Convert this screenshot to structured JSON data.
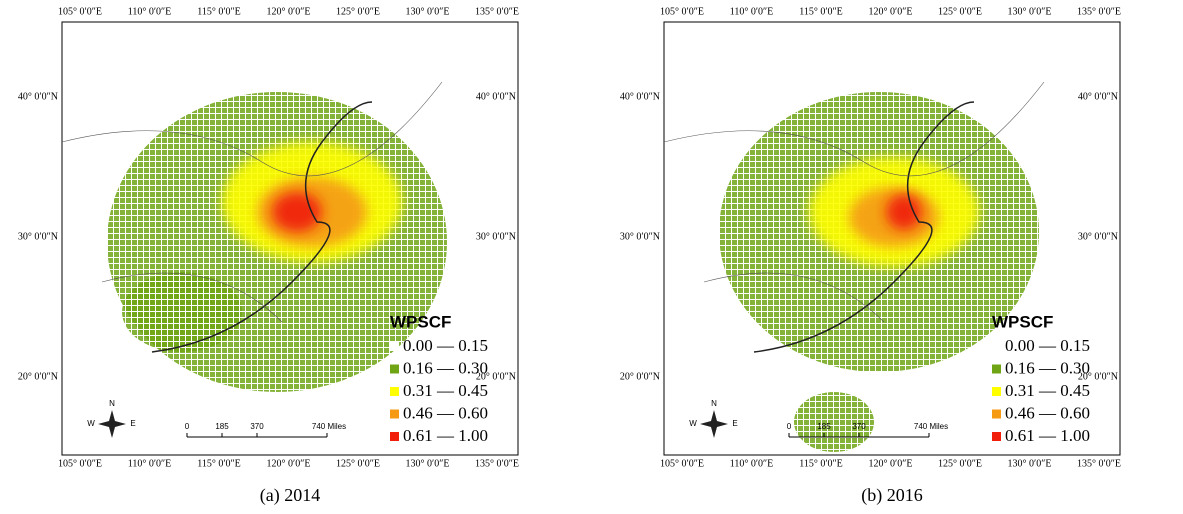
{
  "panels": [
    {
      "caption": "(a) 2014",
      "lon_labels": [
        "105° 0′0″E",
        "110° 0′0″E",
        "115° 0′0″E",
        "120° 0′0″E",
        "125° 0′0″E",
        "130° 0′0″E",
        "135° 0′0″E"
      ],
      "lat_labels": [
        "40° 0′0″N",
        "30° 0′0″N",
        "20° 0′0″N"
      ],
      "legend": {
        "title": "WPSCF",
        "items": [
          {
            "label": "0.00 — 0.15",
            "color": "#ffffff"
          },
          {
            "label": "0.16 — 0.30",
            "color": "#6fa515"
          },
          {
            "label": "0.31 — 0.45",
            "color": "#ffff00"
          },
          {
            "label": "0.46 — 0.60",
            "color": "#f59a12"
          },
          {
            "label": "0.61 — 1.00",
            "color": "#f01e0a"
          }
        ]
      },
      "scale": [
        "0",
        "185",
        "370",
        "740 Miles"
      ],
      "compass": [
        "N",
        "W",
        "E"
      ]
    },
    {
      "caption": "(b) 2016",
      "lon_labels": [
        "105° 0′0″E",
        "110° 0′0″E",
        "115° 0′0″E",
        "120° 0′0″E",
        "125° 0′0″E",
        "130° 0′0″E",
        "135° 0′0″E"
      ],
      "lat_labels": [
        "40° 0′0″N",
        "30° 0′0″N",
        "20° 0′0″N"
      ],
      "legend": {
        "title": "WPSCF",
        "items": [
          {
            "label": "0.00 — 0.15",
            "color": "#ffffff"
          },
          {
            "label": "0.16 — 0.30",
            "color": "#6fa515"
          },
          {
            "label": "0.31 — 0.45",
            "color": "#ffff00"
          },
          {
            "label": "0.46 — 0.60",
            "color": "#f59a12"
          },
          {
            "label": "0.61 — 1.00",
            "color": "#f01e0a"
          }
        ]
      },
      "scale": [
        "0",
        "185",
        "370",
        "740 Miles"
      ],
      "compass": [
        "N",
        "W",
        "E"
      ]
    }
  ]
}
